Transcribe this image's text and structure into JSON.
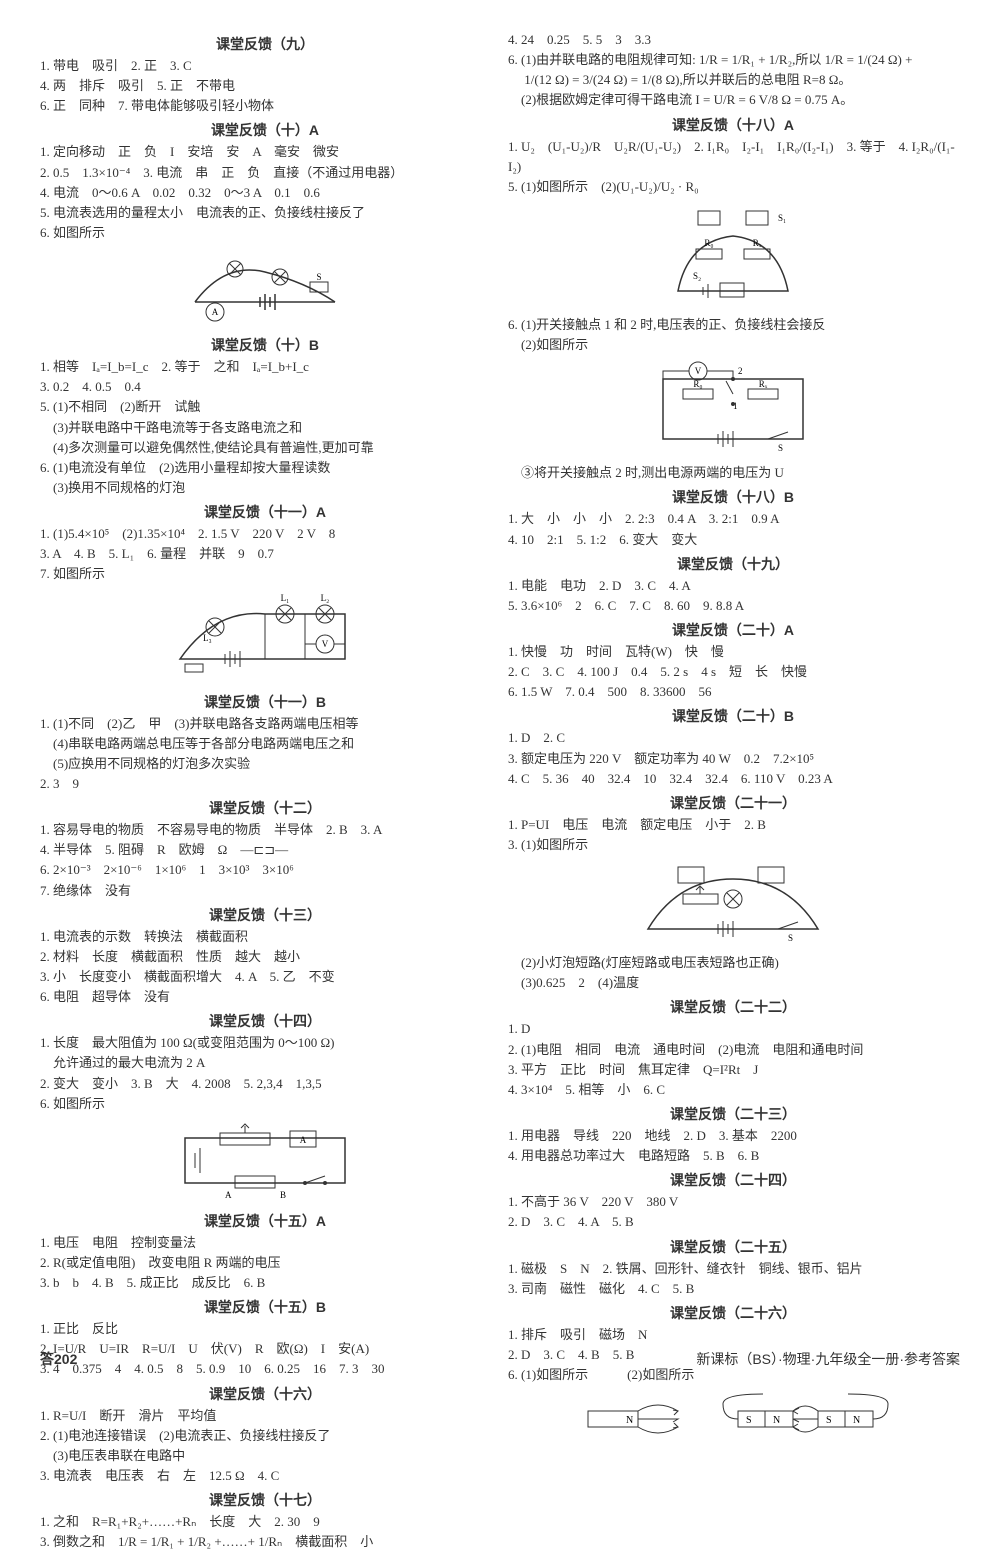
{
  "colors": {
    "text": "#333333",
    "bg": "#ffffff",
    "stroke": "#333333"
  },
  "left": {
    "sections": [
      {
        "title": "课堂反馈（九）",
        "lines": [
          "1. 带电　吸引　2. 正　3. C",
          "4. 两　排斥　吸引　5. 正　不带电",
          "6. 正　同种　7. 带电体能够吸引轻小物体"
        ]
      },
      {
        "title": "课堂反馈（十）A",
        "lines": [
          "1. 定向移动　正　负　I　安培　安　A　毫安　微安",
          "2. 0.5　1.3×10⁻⁴　3. 电流　串　正　负　直接（不通过用电器）",
          "4. 电流　0～0.6 A　0.02　0.32　0～3 A　0.1　0.6",
          "5. 电流表选用的量程太小　电流表的正、负接线柱接反了",
          "6. 如图所示"
        ],
        "diagram": "circuit1"
      },
      {
        "title": "课堂反馈（十）B",
        "lines": [
          "1. 相等　Iₐ=I_b=I_c　2. 等于　之和　Iₐ=I_b+I_c",
          "3. 0.2　4. 0.5　0.4",
          "5. (1)不相同　(2)断开　试触",
          "　(3)并联电路中干路电流等于各支路电流之和",
          "　(4)多次测量可以避免偶然性,使结论具有普遍性,更加可靠",
          "6. (1)电流没有单位　(2)选用小量程却按大量程读数",
          "　(3)换用不同规格的灯泡"
        ]
      },
      {
        "title": "课堂反馈（十一）A",
        "lines": [
          "1. (1)5.4×10⁵　(2)1.35×10⁴　2. 1.5 V　220 V　2 V　8",
          "3. A　4. B　5. L₁　6. 量程　并联　9　0.7",
          "7. 如图所示"
        ],
        "diagram": "circuit2"
      },
      {
        "title": "课堂反馈（十一）B",
        "lines": [
          "1. (1)不同　(2)乙　甲　(3)并联电路各支路两端电压相等",
          "　(4)串联电路两端总电压等于各部分电路两端电压之和",
          "　(5)应换用不同规格的灯泡多次实验",
          "2. 3　9"
        ]
      },
      {
        "title": "课堂反馈（十二）",
        "lines": [
          "1. 容易导电的物质　不容易导电的物质　半导体　2. B　3. A",
          "4. 半导体　5. 阻碍　R　欧姆　Ω　—⊏⊐—",
          "6. 2×10⁻³　2×10⁻⁶　1×10⁶　1　3×10³　3×10⁶",
          "7. 绝缘体　没有"
        ]
      },
      {
        "title": "课堂反馈（十三）",
        "lines": [
          "1. 电流表的示数　转换法　横截面积",
          "2. 材料　长度　横截面积　性质　越大　越小",
          "3. 小　长度变小　横截面积增大　4. A　5. 乙　不变",
          "6. 电阻　超导体　没有"
        ]
      },
      {
        "title": "课堂反馈（十四）",
        "lines": [
          "1. 长度　最大阻值为 100 Ω(或变阻范围为 0～100 Ω)",
          "　允许通过的最大电流为 2 A",
          "2. 变大　变小　3. B　大　4. 2008　5. 2,3,4　1,3,5",
          "6. 如图所示"
        ],
        "diagram": "circuit3"
      },
      {
        "title": "课堂反馈（十五）A",
        "lines": [
          "1. 电压　电阻　控制变量法",
          "2. R(或定值电阻)　改变电阻 R 两端的电压",
          "3. b　b　4. B　5. 成正比　成反比　6. B"
        ]
      },
      {
        "title": "课堂反馈（十五）B",
        "lines": [
          "1. 正比　反比",
          "2. I=U/R　U=IR　R=U/I　U　伏(V)　R　欧(Ω)　I　安(A)",
          "3. 4　0.375　4　4. 0.5　8　5. 0.9　10　6. 0.25　16　7. 3　30"
        ]
      },
      {
        "title": "课堂反馈（十六）",
        "lines": [
          "1. R=U/I　断开　滑片　平均值",
          "2. (1)电池连接错误　(2)电流表正、负接线柱接反了",
          "　(3)电压表串联在电路中",
          "3. 电流表　电压表　右　左　12.5 Ω　4. C"
        ]
      },
      {
        "title": "课堂反馈（十七）",
        "lines": [
          "1. 之和　R=R₁+R₂+……+Rₙ　长度　大　2. 30　9",
          "3. 倒数之和　1/R = 1/R₁ + 1/R₂ +……+ 1/Rₙ　横截面积　小"
        ]
      }
    ]
  },
  "right": {
    "sections": [
      {
        "title": "",
        "lines": [
          "4. 24　0.25　5. 5　3　3.3",
          "6. (1)由并联电路的电阻规律可知: 1/R = 1/R₁ + 1/R₂,所以 1/R = 1/(24 Ω) +",
          "　 1/(12 Ω) = 3/(24 Ω) = 1/(8 Ω),所以并联后的总电阻 R=8 Ω。",
          "　(2)根据欧姆定律可得干路电流 I = U/R = 6 V/8 Ω = 0.75 A。"
        ]
      },
      {
        "title": "课堂反馈（十八）A",
        "lines": [
          "1. U₂　(U₁-U₂)/R　U₂R/(U₁-U₂)　2. I₁R₀　I₂-I₁　I₁R₀/(I₂-I₁)　3. 等于　4. I₂R₀/(I₁-I₂)",
          "5. (1)如图所示　(2)(U₁-U₂)/U₂ · R₀"
        ],
        "diagram": "circuit4"
      },
      {
        "title": "",
        "lines": [
          "6. (1)开关接触点 1 和 2 时,电压表的正、负接线柱会接反",
          "　(2)如图所示"
        ],
        "diagram": "circuit5"
      },
      {
        "title": "",
        "lines": [
          "　③将开关接触点 2 时,测出电源两端的电压为 U"
        ]
      },
      {
        "title": "课堂反馈（十八）B",
        "lines": [
          "1. 大　小　小　小　2. 2:3　0.4 A　3. 2:1　0.9 A",
          "4. 10　2:1　5. 1:2　6. 变大　变大"
        ]
      },
      {
        "title": "课堂反馈（十九）",
        "lines": [
          "1. 电能　电功　2. D　3. C　4. A",
          "5. 3.6×10⁶　2　6. C　7. C　8. 60　9. 8.8 A"
        ]
      },
      {
        "title": "课堂反馈（二十）A",
        "lines": [
          "1. 快慢　功　时间　瓦特(W)　快　慢",
          "2. C　3. C　4. 100 J　0.4　5. 2 s　4 s　短　长　快慢",
          "6. 1.5 W　7. 0.4　500　8. 33600　56"
        ]
      },
      {
        "title": "课堂反馈（二十）B",
        "lines": [
          "1. D　2. C",
          "3. 额定电压为 220 V　额定功率为 40 W　0.2　7.2×10⁵",
          "4. C　5. 36　40　32.4　10　32.4　32.4　6. 110 V　0.23 A"
        ]
      },
      {
        "title": "课堂反馈（二十一）",
        "lines": [
          "1. P=UI　电压　电流　额定电压　小于　2. B",
          "3. (1)如图所示"
        ],
        "diagram": "circuit6"
      },
      {
        "title": "",
        "lines": [
          "　(2)小灯泡短路(灯座短路或电压表短路也正确)",
          "　(3)0.625　2　(4)温度"
        ]
      },
      {
        "title": "课堂反馈（二十二）",
        "lines": [
          "1. D",
          "2. (1)电阻　相同　电流　通电时间　(2)电流　电阻和通电时间",
          "3. 平方　正比　时间　焦耳定律　Q=I²Rt　J",
          "4. 3×10⁴　5. 相等　小　6. C"
        ]
      },
      {
        "title": "课堂反馈（二十三）",
        "lines": [
          "1. 用电器　导线　220　地线　2. D　3. 基本　2200",
          "4. 用电器总功率过大　电路短路　5. B　6. B"
        ]
      },
      {
        "title": "课堂反馈（二十四）",
        "lines": [
          "1. 不高于 36 V　220 V　380 V",
          "2. D　3. C　4. A　5. B"
        ]
      },
      {
        "title": "课堂反馈（二十五）",
        "lines": [
          "1. 磁极　S　N　2. 铁屑、回形针、缝衣针　铜线、银币、铝片",
          "3. 司南　磁性　磁化　4. C　5. B"
        ]
      },
      {
        "title": "课堂反馈（二十六）",
        "lines": [
          "1. 排斥　吸引　磁场　N",
          "2. D　3. C　4. B　5. B",
          "6. (1)如图所示　　　(2)如图所示"
        ],
        "diagram": "magnets"
      }
    ]
  },
  "footer": {
    "page_label": "答",
    "page_num": "202",
    "book_title": "新课标（BS）·物理·九年级全一册·参考答案"
  }
}
